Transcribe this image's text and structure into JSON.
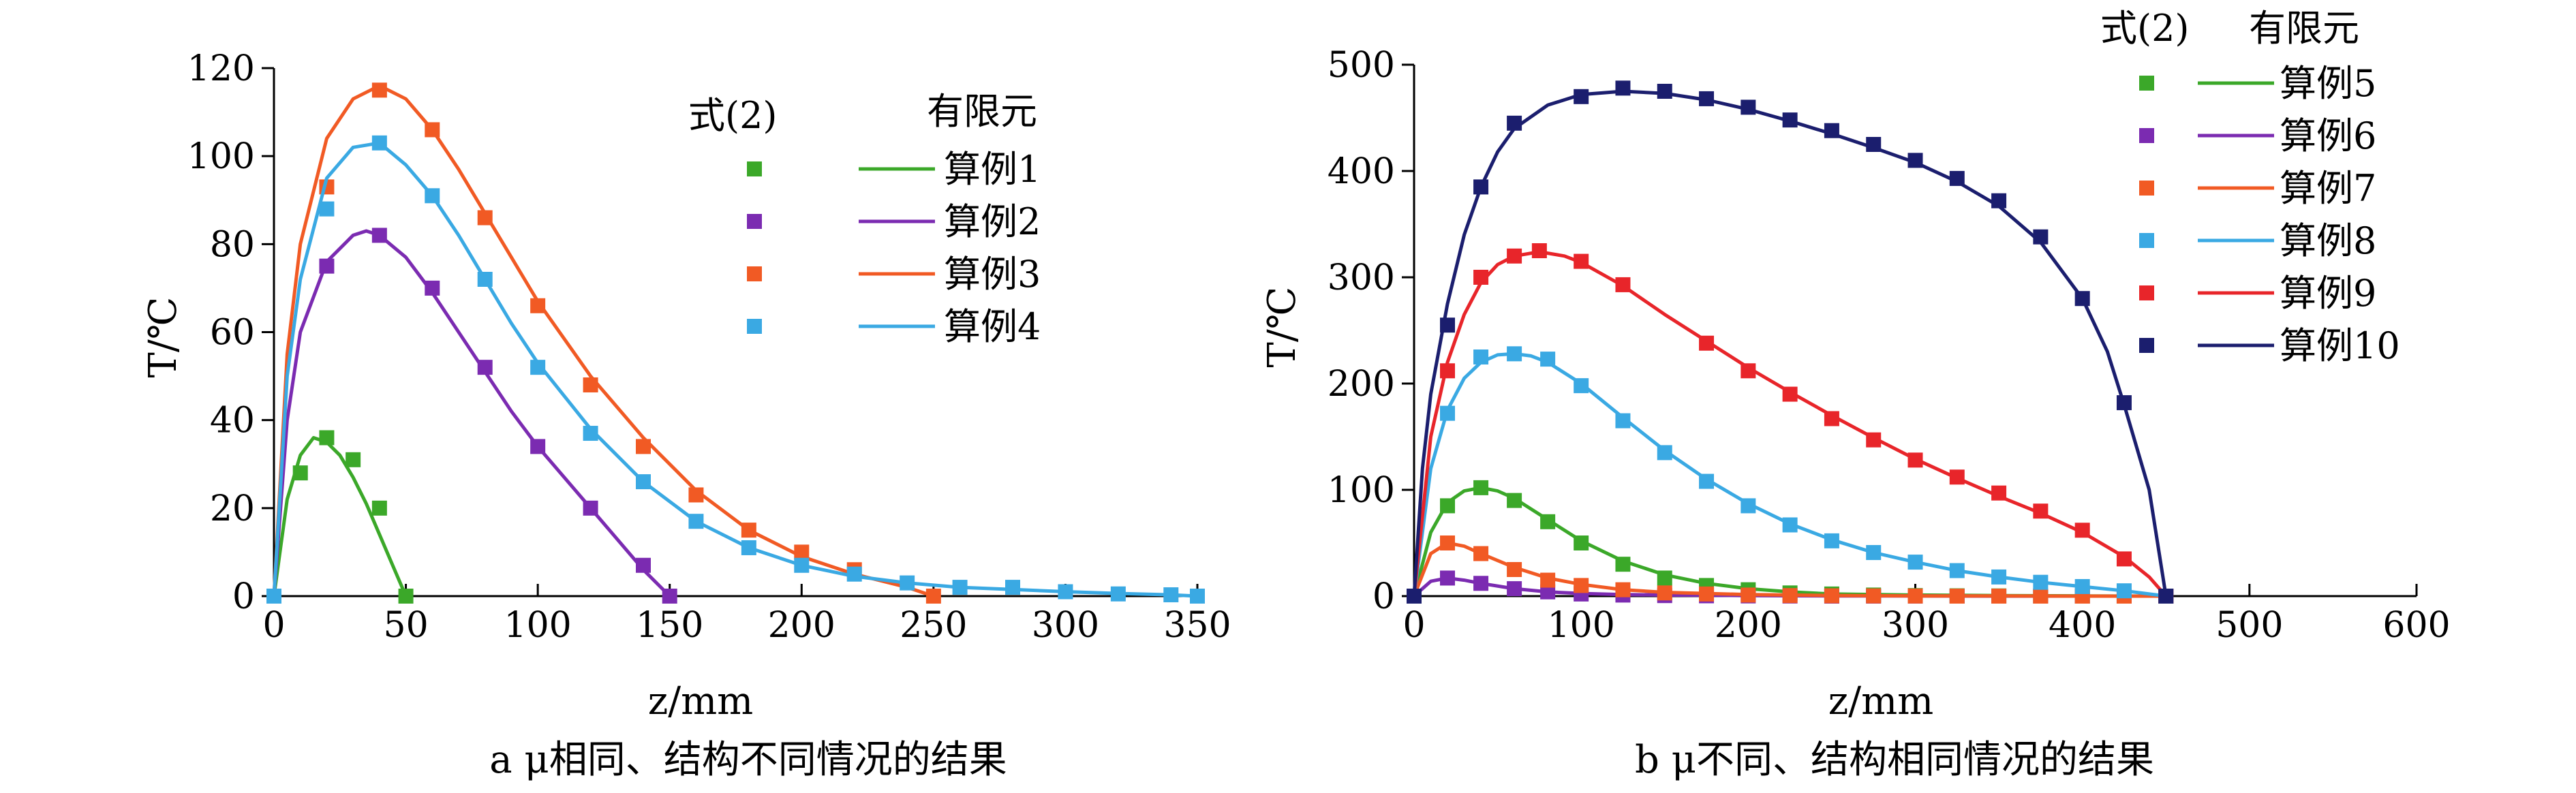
{
  "chart_data": [
    {
      "type": "line",
      "panel_caption": "a μ相同、结构不同情况的结果",
      "xlabel": "z/mm",
      "ylabel": "T/℃",
      "xlim": [
        0,
        350
      ],
      "ylim": [
        0,
        120
      ],
      "xticks": [
        0,
        50,
        100,
        150,
        200,
        250,
        300,
        350
      ],
      "yticks": [
        0,
        20,
        40,
        60,
        80,
        100,
        120
      ],
      "legend_header_marker": "式(2)",
      "legend_header_line": "有限元",
      "series": [
        {
          "name": "算例1",
          "color": "#3ba829",
          "points_x": [
            0,
            10,
            20,
            30,
            40,
            50
          ],
          "points_y": [
            0,
            28,
            36,
            31,
            20,
            0
          ],
          "curve_x": [
            0,
            5,
            10,
            15,
            20,
            25,
            30,
            35,
            40,
            45,
            50
          ],
          "curve_y": [
            0,
            22,
            32,
            36,
            35,
            32,
            27,
            21,
            14,
            7,
            0
          ]
        },
        {
          "name": "算例2",
          "color": "#7b2bb1",
          "points_x": [
            0,
            20,
            40,
            60,
            80,
            100,
            120,
            140,
            150
          ],
          "points_y": [
            0,
            75,
            82,
            70,
            52,
            34,
            20,
            7,
            0
          ],
          "curve_x": [
            0,
            5,
            10,
            20,
            30,
            35,
            40,
            50,
            60,
            70,
            80,
            90,
            100,
            110,
            120,
            130,
            140,
            150
          ],
          "curve_y": [
            0,
            40,
            60,
            76,
            82,
            83,
            82,
            77,
            69,
            60,
            51,
            42,
            34,
            27,
            20,
            13,
            6,
            0
          ]
        },
        {
          "name": "算例3",
          "color": "#f15a24",
          "points_x": [
            0,
            20,
            40,
            60,
            80,
            100,
            120,
            140,
            160,
            180,
            200,
            220,
            250
          ],
          "points_y": [
            0,
            93,
            115,
            106,
            86,
            66,
            48,
            34,
            23,
            15,
            10,
            6,
            0
          ],
          "curve_x": [
            0,
            5,
            10,
            20,
            30,
            40,
            50,
            60,
            70,
            80,
            90,
            100,
            120,
            140,
            160,
            180,
            200,
            220,
            240,
            250
          ],
          "curve_y": [
            0,
            55,
            80,
            104,
            113,
            116,
            113,
            106,
            97,
            87,
            77,
            67,
            50,
            36,
            24,
            15,
            9,
            5,
            2,
            0
          ]
        },
        {
          "name": "算例4",
          "color": "#3aa9e3",
          "points_x": [
            0,
            20,
            40,
            60,
            80,
            100,
            120,
            140,
            160,
            180,
            200,
            220,
            240,
            260,
            280,
            300,
            320,
            340,
            350
          ],
          "points_y": [
            0,
            88,
            103,
            91,
            72,
            52,
            37,
            26,
            17,
            11,
            7,
            5,
            3,
            2,
            2,
            1,
            0.5,
            0.3,
            0
          ],
          "curve_x": [
            0,
            5,
            10,
            20,
            30,
            40,
            50,
            60,
            70,
            80,
            90,
            100,
            120,
            140,
            160,
            180,
            200,
            220,
            240,
            260,
            280,
            300,
            320,
            340,
            350
          ],
          "curve_y": [
            0,
            50,
            72,
            95,
            102,
            103,
            98,
            91,
            82,
            72,
            62,
            53,
            38,
            26,
            17,
            11,
            7,
            4.5,
            3,
            2,
            1.5,
            1,
            0.6,
            0.3,
            0
          ]
        }
      ]
    },
    {
      "type": "line",
      "panel_caption": "b μ不同、结构相同情况的结果",
      "xlabel": "z/mm",
      "ylabel": "T/℃",
      "xlim": [
        0,
        600
      ],
      "ylim": [
        0,
        500
      ],
      "xticks": [
        0,
        100,
        200,
        300,
        400,
        500,
        600
      ],
      "yticks": [
        0,
        100,
        200,
        300,
        400,
        500
      ],
      "legend_header_marker": "式(2)",
      "legend_header_line": "有限元",
      "series": [
        {
          "name": "算例5",
          "color": "#3ba829",
          "points_x": [
            0,
            20,
            40,
            60,
            80,
            100,
            125,
            150,
            175,
            200,
            225,
            250,
            275,
            300,
            325,
            350,
            375,
            400,
            425,
            450
          ],
          "points_y": [
            0,
            85,
            102,
            90,
            70,
            50,
            30,
            17,
            10,
            6,
            3,
            2,
            1,
            0.5,
            0.3,
            0.2,
            0.1,
            0.1,
            0,
            0
          ],
          "curve_x": [
            0,
            10,
            20,
            30,
            40,
            50,
            60,
            80,
            100,
            125,
            150,
            175,
            200,
            225,
            250,
            300,
            350,
            400,
            450
          ],
          "curve_y": [
            0,
            60,
            88,
            99,
            102,
            99,
            92,
            72,
            52,
            33,
            20,
            12,
            7,
            4,
            2,
            1,
            0.5,
            0.2,
            0
          ]
        },
        {
          "name": "算例6",
          "color": "#7b2bb1",
          "points_x": [
            0,
            20,
            40,
            60,
            80,
            100,
            125,
            150,
            175,
            200,
            225,
            250,
            275,
            300,
            325,
            350,
            375,
            400,
            425,
            450
          ],
          "points_y": [
            0,
            17,
            12,
            7,
            4,
            2,
            1,
            0.5,
            0.3,
            0.2,
            0.1,
            0,
            0,
            0,
            0,
            0,
            0,
            0,
            0,
            0
          ],
          "curve_x": [
            0,
            10,
            20,
            30,
            40,
            60,
            80,
            100,
            125,
            150,
            200,
            250,
            300,
            350,
            400,
            450
          ],
          "curve_y": [
            0,
            14,
            17,
            15,
            12,
            7,
            4,
            2.5,
            1.5,
            1,
            0.5,
            0.2,
            0.1,
            0,
            0,
            0
          ]
        },
        {
          "name": "算例7",
          "color": "#f15a24",
          "points_x": [
            0,
            20,
            40,
            60,
            80,
            100,
            125,
            150,
            175,
            200,
            225,
            250,
            275,
            300,
            325,
            350,
            375,
            400,
            425,
            450
          ],
          "points_y": [
            0,
            50,
            40,
            25,
            15,
            10,
            6,
            3,
            2,
            1,
            0.5,
            0.3,
            0.2,
            0.1,
            0,
            0,
            0,
            0,
            0,
            0
          ],
          "curve_x": [
            0,
            10,
            20,
            30,
            40,
            60,
            80,
            100,
            125,
            150,
            200,
            250,
            300,
            350,
            400,
            450
          ],
          "curve_y": [
            0,
            40,
            50,
            47,
            40,
            27,
            17,
            11,
            6,
            3.5,
            1.5,
            0.6,
            0.2,
            0.1,
            0,
            0
          ]
        },
        {
          "name": "算例8",
          "color": "#3aa9e3",
          "points_x": [
            0,
            20,
            40,
            60,
            80,
            100,
            125,
            150,
            175,
            200,
            225,
            250,
            275,
            300,
            325,
            350,
            375,
            400,
            425,
            450
          ],
          "points_y": [
            0,
            172,
            225,
            228,
            223,
            198,
            165,
            135,
            108,
            85,
            67,
            52,
            41,
            32,
            24,
            18,
            13,
            9,
            5,
            0
          ],
          "curve_x": [
            0,
            10,
            20,
            30,
            40,
            50,
            60,
            70,
            80,
            100,
            125,
            150,
            175,
            200,
            225,
            250,
            275,
            300,
            325,
            350,
            375,
            400,
            425,
            450
          ],
          "curve_y": [
            0,
            120,
            175,
            205,
            220,
            227,
            228,
            226,
            220,
            200,
            168,
            137,
            110,
            87,
            68,
            53,
            41,
            32,
            24,
            18,
            13,
            9,
            5,
            0
          ]
        },
        {
          "name": "算例9",
          "color": "#e8252a",
          "points_x": [
            0,
            20,
            40,
            60,
            75,
            100,
            125,
            175,
            200,
            225,
            250,
            275,
            300,
            325,
            350,
            375,
            400,
            425,
            450
          ],
          "points_y": [
            0,
            212,
            300,
            320,
            325,
            315,
            293,
            238,
            212,
            190,
            167,
            147,
            128,
            112,
            97,
            80,
            62,
            35,
            0
          ],
          "curve_x": [
            0,
            10,
            20,
            30,
            40,
            50,
            60,
            75,
            90,
            100,
            125,
            150,
            175,
            200,
            225,
            250,
            275,
            300,
            325,
            350,
            375,
            400,
            425,
            440,
            450
          ],
          "curve_y": [
            0,
            150,
            220,
            265,
            295,
            312,
            320,
            324,
            320,
            314,
            292,
            265,
            240,
            215,
            192,
            170,
            149,
            129,
            111,
            94,
            78,
            60,
            37,
            18,
            0
          ]
        },
        {
          "name": "算例10",
          "color": "#1b1e6e",
          "points_x": [
            0,
            20,
            40,
            60,
            100,
            125,
            150,
            175,
            200,
            225,
            250,
            275,
            300,
            325,
            350,
            375,
            400,
            425,
            450
          ],
          "points_y": [
            0,
            255,
            385,
            445,
            470,
            478,
            475,
            468,
            460,
            448,
            438,
            425,
            410,
            393,
            372,
            338,
            280,
            182,
            0
          ],
          "curve_x": [
            0,
            5,
            10,
            20,
            30,
            40,
            50,
            60,
            80,
            100,
            125,
            150,
            175,
            200,
            225,
            250,
            275,
            300,
            325,
            350,
            375,
            400,
            415,
            425,
            440,
            450
          ],
          "curve_y": [
            0,
            120,
            190,
            275,
            340,
            385,
            418,
            440,
            462,
            472,
            475,
            473,
            467,
            458,
            447,
            435,
            422,
            408,
            390,
            367,
            333,
            280,
            230,
            180,
            100,
            0
          ]
        }
      ]
    }
  ]
}
